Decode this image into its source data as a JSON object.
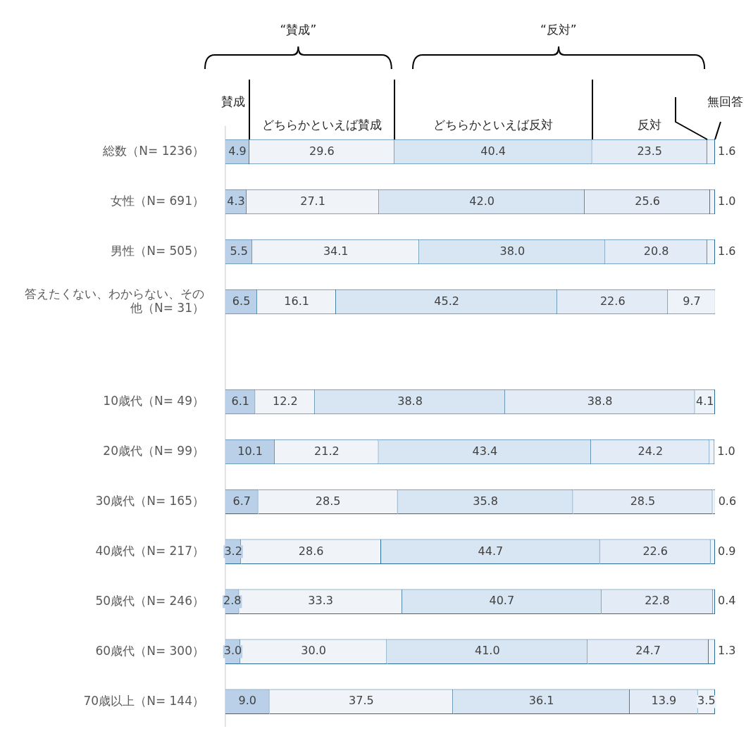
{
  "chart_data": {
    "type": "bar",
    "orientation": "horizontal",
    "stacked": true,
    "categories": [
      "総数（N= 1236）",
      "女性（N= 691）",
      "男性（N= 505）",
      "答えたくない、わからない、その他（N= 31）",
      null,
      "10歳代（N= 49）",
      "20歳代（N= 99）",
      "30歳代（N= 165）",
      "40歳代（N= 217）",
      "50歳代（N= 246）",
      "60歳代（N= 300）",
      "70歳以上（N= 144）"
    ],
    "series": [
      {
        "name": "賛成",
        "color": "#b9d0e8",
        "values": [
          4.9,
          4.3,
          5.5,
          6.5,
          null,
          6.1,
          10.1,
          6.7,
          3.2,
          2.8,
          3.0,
          9.0
        ],
        "value_labels": [
          "4.9",
          "4.3",
          "5.5",
          "6.5",
          null,
          "6.1",
          "10.1",
          "6.7",
          "3.2",
          "2.8",
          "3.0",
          "9.0"
        ]
      },
      {
        "name": "どちらかといえば賛成",
        "color": "#f0f4f9",
        "values": [
          29.6,
          27.1,
          34.1,
          16.1,
          null,
          12.2,
          21.2,
          28.5,
          28.6,
          33.3,
          30.0,
          37.5
        ],
        "value_labels": [
          "29.6",
          "27.1",
          "34.1",
          "16.1",
          null,
          "12.2",
          "21.2",
          "28.5",
          "28.6",
          "33.3",
          "30.0",
          "37.5"
        ]
      },
      {
        "name": "どちらかといえば反対",
        "color": "#d8e5f2",
        "values": [
          40.4,
          42.0,
          38.0,
          45.2,
          null,
          38.8,
          43.4,
          35.8,
          44.7,
          40.7,
          41.0,
          36.1
        ],
        "value_labels": [
          "40.4",
          "42.0",
          "38.0",
          "45.2",
          null,
          "38.8",
          "43.4",
          "35.8",
          "44.7",
          "40.7",
          "41.0",
          "36.1"
        ]
      },
      {
        "name": "反対",
        "color": "#e3ecf6",
        "values": [
          23.5,
          25.6,
          20.8,
          22.6,
          null,
          38.8,
          24.2,
          28.5,
          22.6,
          22.8,
          24.7,
          13.9
        ],
        "value_labels": [
          "23.5",
          "25.6",
          "20.8",
          "22.6",
          null,
          "38.8",
          "24.2",
          "28.5",
          "22.6",
          "22.8",
          "24.7",
          "13.9"
        ]
      },
      {
        "name": "無回答",
        "color": "#eef3f9",
        "values": [
          1.6,
          1.0,
          1.6,
          9.7,
          null,
          4.1,
          1.0,
          0.6,
          0.9,
          0.4,
          1.3,
          3.5
        ],
        "value_labels": [
          "1.6",
          "1.0",
          "1.6",
          "9.7",
          null,
          "4.1",
          "1.0",
          "0.6",
          "0.9",
          "0.4",
          "1.3",
          "3.5"
        ]
      }
    ],
    "annotations": [
      "“賛成”",
      "“反対”"
    ],
    "xlim": [
      0,
      100
    ],
    "tick_labels": "y"
  }
}
